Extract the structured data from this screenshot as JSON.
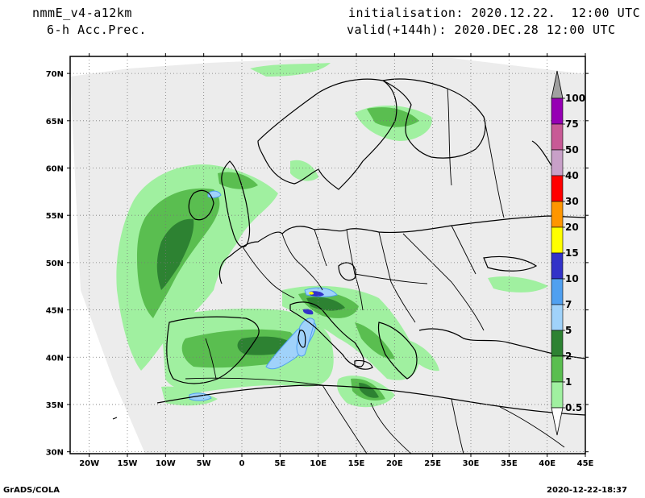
{
  "header": {
    "model": "nmmE_v4-a12km",
    "field": "6-h Acc.Prec.",
    "init": "initialisation: 2020.12.22.  12:00 UTC",
    "valid": "valid(+144h): 2020.DEC.28 12:00 UTC"
  },
  "footer": {
    "left": "GrADS/COLA",
    "right": "2020-12-22-18:37"
  },
  "axes": {
    "lat_labels": [
      "70N",
      "65N",
      "60N",
      "55N",
      "50N",
      "45N",
      "40N",
      "35N",
      "30N"
    ],
    "lon_labels": [
      "20W",
      "15W",
      "10W",
      "5W",
      "0",
      "5E",
      "10E",
      "15E",
      "20E",
      "25E",
      "30E",
      "35E",
      "40E",
      "45E"
    ],
    "lat_values": [
      70,
      65,
      60,
      55,
      50,
      45,
      40,
      35,
      30
    ],
    "lon_values": [
      -20,
      -15,
      -10,
      -5,
      0,
      5,
      10,
      15,
      20,
      25,
      30,
      35,
      40,
      45
    ],
    "lat_range": [
      29.8,
      71.8
    ],
    "lon_range": [
      -22.5,
      45
    ],
    "grid": true
  },
  "colorbar": {
    "labels": [
      "100",
      "75",
      "50",
      "40",
      "30",
      "20",
      "15",
      "10",
      "7",
      "5",
      "2",
      "1",
      "0.5"
    ],
    "colors": [
      "#9600b4",
      "#c85a96",
      "#c8a0c8",
      "#ff0000",
      "#ff9600",
      "#ffff00",
      "#3232c8",
      "#50a0f0",
      "#a0d2fa",
      "#2d8232",
      "#5abe50",
      "#a0f0a0"
    ],
    "top_color": "#a0a0a0"
  },
  "colors": {
    "domain": "#ececec",
    "light_green": "#a0f0a0",
    "mid_green": "#5abe50",
    "dark_green": "#2d8232",
    "light_blue": "#a0d2fa",
    "blue": "#50a0f0",
    "dark_blue": "#3232c8",
    "yellow": "#ffff00"
  }
}
